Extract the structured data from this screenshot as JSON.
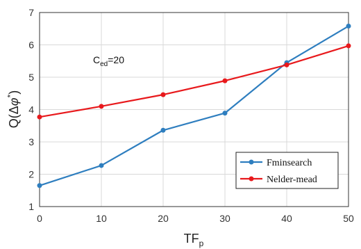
{
  "chart_data": {
    "type": "line",
    "x": [
      0,
      10,
      20,
      30,
      40,
      50
    ],
    "x_ticks": [
      "0",
      "10",
      "20",
      "30",
      "40",
      "50"
    ],
    "y_ticks": [
      "1",
      "2",
      "3",
      "4",
      "5",
      "6",
      "7"
    ],
    "xlim": [
      0,
      50
    ],
    "ylim": [
      1,
      7
    ],
    "grid": true,
    "legend_position": "bottom-right",
    "xlabel": {
      "main": "TF",
      "sub": "p"
    },
    "ylabel": {
      "prefix": "Q(",
      "delta": "Δ",
      "phi": "φ",
      "star": "*",
      "suffix": ")"
    },
    "annotation": {
      "main": "C",
      "sub": "ed",
      "rest": "=20"
    },
    "series": [
      {
        "name": "Fminsearch",
        "color": "#2E7EBF",
        "values": [
          1.65,
          2.27,
          3.36,
          3.89,
          5.45,
          6.58
        ]
      },
      {
        "name": "Nelder-mead",
        "color": "#E8191C",
        "values": [
          3.77,
          4.1,
          4.46,
          4.89,
          5.38,
          5.97
        ]
      }
    ]
  }
}
